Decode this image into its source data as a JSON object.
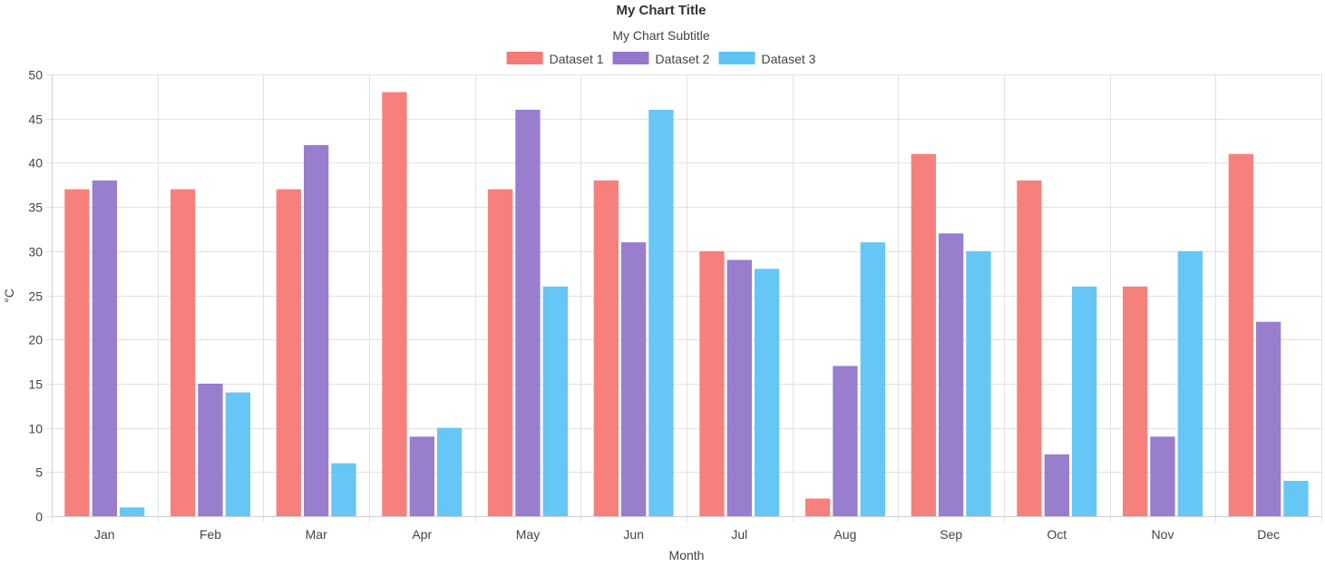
{
  "chart_data": {
    "type": "bar",
    "title": "My Chart Title",
    "subtitle": "My Chart Subtitle",
    "xlabel": "Month",
    "ylabel": "°C",
    "categories": [
      "Jan",
      "Feb",
      "Mar",
      "Apr",
      "May",
      "Jun",
      "Jul",
      "Aug",
      "Sep",
      "Oct",
      "Nov",
      "Dec"
    ],
    "series": [
      {
        "name": "Dataset 1",
        "color": "#f67a75",
        "values": [
          37,
          37,
          37,
          48,
          37,
          38,
          30,
          2,
          41,
          38,
          26,
          41
        ]
      },
      {
        "name": "Dataset 2",
        "color": "#9477cb",
        "values": [
          38,
          15,
          42,
          9,
          46,
          31,
          29,
          17,
          32,
          7,
          9,
          22
        ]
      },
      {
        "name": "Dataset 3",
        "color": "#5ec3f5",
        "values": [
          1,
          14,
          6,
          10,
          26,
          46,
          28,
          31,
          30,
          26,
          30,
          4
        ]
      }
    ],
    "ylim": [
      0,
      50
    ],
    "ytick_step": 5,
    "grid": true,
    "legend": "top-center"
  }
}
